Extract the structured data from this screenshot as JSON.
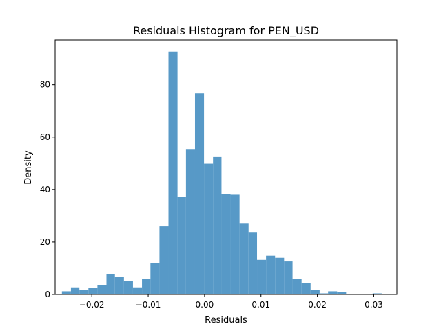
{
  "chart_data": {
    "type": "bar",
    "title": "Residuals Histogram for PEN_USD",
    "xlabel": "Residuals",
    "ylabel": "Density",
    "xlim": [
      -0.0265,
      0.0341
    ],
    "ylim": [
      0,
      97
    ],
    "grid": false,
    "bar_color": "#5799c7",
    "x_ticks": [
      {
        "value": -0.02,
        "label": "−0.02"
      },
      {
        "value": -0.01,
        "label": "−0.01"
      },
      {
        "value": 0.0,
        "label": "0.00"
      },
      {
        "value": 0.01,
        "label": "0.01"
      },
      {
        "value": 0.02,
        "label": "0.02"
      },
      {
        "value": 0.03,
        "label": "0.03"
      }
    ],
    "y_ticks": [
      {
        "value": 0,
        "label": "0"
      },
      {
        "value": 20,
        "label": "20"
      },
      {
        "value": 40,
        "label": "40"
      },
      {
        "value": 60,
        "label": "60"
      },
      {
        "value": 80,
        "label": "80"
      }
    ],
    "bins": [
      {
        "x0": -0.0253,
        "x1": -0.0237,
        "density": 1.2
      },
      {
        "x0": -0.0237,
        "x1": -0.0222,
        "density": 2.7
      },
      {
        "x0": -0.0222,
        "x1": -0.0206,
        "density": 1.6
      },
      {
        "x0": -0.0206,
        "x1": -0.019,
        "density": 2.4
      },
      {
        "x0": -0.019,
        "x1": -0.0174,
        "density": 3.6
      },
      {
        "x0": -0.0174,
        "x1": -0.0159,
        "density": 7.7
      },
      {
        "x0": -0.0159,
        "x1": -0.0143,
        "density": 6.6
      },
      {
        "x0": -0.0143,
        "x1": -0.0127,
        "density": 5.0
      },
      {
        "x0": -0.0127,
        "x1": -0.0111,
        "density": 2.7
      },
      {
        "x0": -0.0111,
        "x1": -0.0096,
        "density": 6.0
      },
      {
        "x0": -0.0096,
        "x1": -0.008,
        "density": 12.0
      },
      {
        "x0": -0.008,
        "x1": -0.0064,
        "density": 26.0
      },
      {
        "x0": -0.0064,
        "x1": -0.0048,
        "density": 92.6
      },
      {
        "x0": -0.0048,
        "x1": -0.0033,
        "density": 37.3
      },
      {
        "x0": -0.0033,
        "x1": -0.0017,
        "density": 55.4
      },
      {
        "x0": -0.0017,
        "x1": -0.0001,
        "density": 76.7
      },
      {
        "x0": -0.0001,
        "x1": 0.0015,
        "density": 49.8
      },
      {
        "x0": 0.0015,
        "x1": 0.003,
        "density": 52.6
      },
      {
        "x0": 0.003,
        "x1": 0.0046,
        "density": 38.3
      },
      {
        "x0": 0.0046,
        "x1": 0.0062,
        "density": 38.0
      },
      {
        "x0": 0.0062,
        "x1": 0.0078,
        "density": 27.0
      },
      {
        "x0": 0.0078,
        "x1": 0.0093,
        "density": 23.6
      },
      {
        "x0": 0.0093,
        "x1": 0.0109,
        "density": 13.2
      },
      {
        "x0": 0.0109,
        "x1": 0.0125,
        "density": 14.8
      },
      {
        "x0": 0.0125,
        "x1": 0.0141,
        "density": 14.0
      },
      {
        "x0": 0.0141,
        "x1": 0.0156,
        "density": 12.6
      },
      {
        "x0": 0.0156,
        "x1": 0.0172,
        "density": 5.9
      },
      {
        "x0": 0.0172,
        "x1": 0.0188,
        "density": 4.3
      },
      {
        "x0": 0.0188,
        "x1": 0.0204,
        "density": 1.6
      },
      {
        "x0": 0.0204,
        "x1": 0.0219,
        "density": 0.4
      },
      {
        "x0": 0.0219,
        "x1": 0.0235,
        "density": 1.2
      },
      {
        "x0": 0.0235,
        "x1": 0.0251,
        "density": 0.8
      },
      {
        "x0": 0.0251,
        "x1": 0.0267,
        "density": 0.0
      },
      {
        "x0": 0.0267,
        "x1": 0.0282,
        "density": 0.0
      },
      {
        "x0": 0.0282,
        "x1": 0.0298,
        "density": 0.0
      },
      {
        "x0": 0.0298,
        "x1": 0.0314,
        "density": 0.4
      }
    ]
  }
}
